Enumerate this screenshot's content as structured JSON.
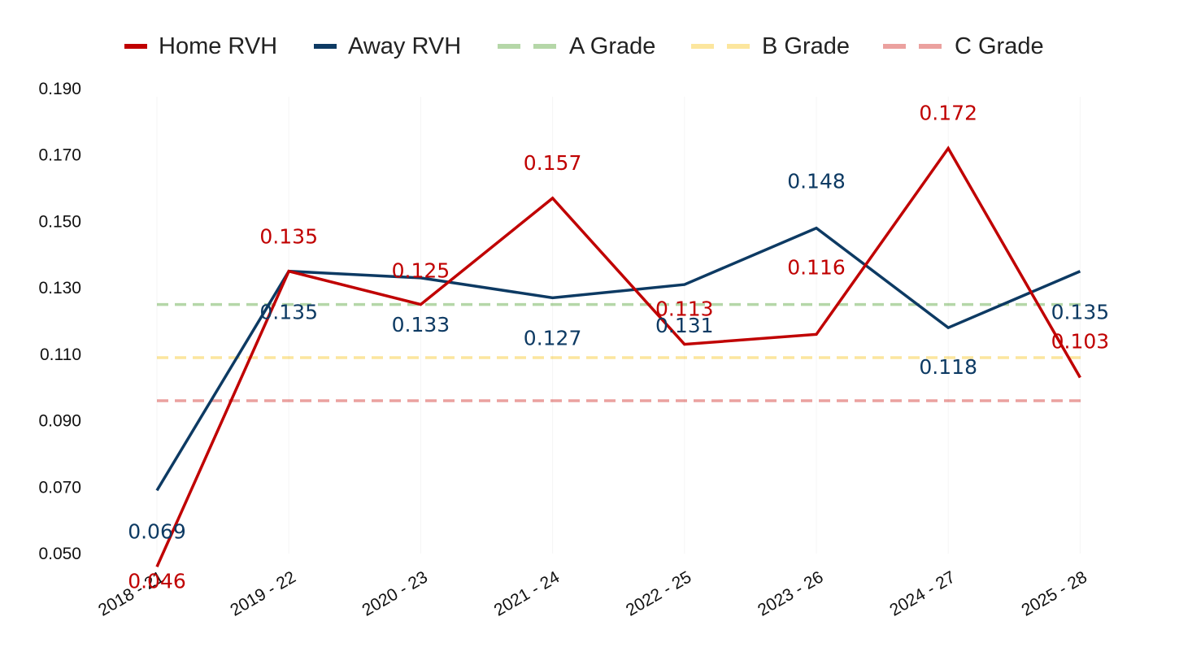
{
  "chart_data": {
    "type": "line",
    "title": "",
    "xlabel": "",
    "ylabel": "",
    "categories": [
      "2018 - 21",
      "2019 - 22",
      "2020 - 23",
      "2021 - 24",
      "2022 - 25",
      "2023 - 26",
      "2024 - 27",
      "2025 - 28"
    ],
    "ylim": [
      0.05,
      0.19
    ],
    "yticks": [
      "0.190",
      "0.170",
      "0.150",
      "0.130",
      "0.110",
      "0.090",
      "0.070",
      "0.050"
    ],
    "ytick_values": [
      0.19,
      0.17,
      0.15,
      0.13,
      0.11,
      0.09,
      0.07,
      0.05
    ],
    "grid": false,
    "legend_position": "top",
    "series": [
      {
        "name": "Home RVH",
        "color": "#c00000",
        "values": [
          0.046,
          0.135,
          0.125,
          0.157,
          0.113,
          0.116,
          0.172,
          0.103
        ],
        "labels": [
          "0.046",
          "0.135",
          "0.125",
          "0.157",
          "0.113",
          "0.116",
          "0.172",
          "0.103"
        ]
      },
      {
        "name": "Away RVH",
        "color": "#0d3a63",
        "values": [
          0.069,
          0.135,
          0.133,
          0.127,
          0.131,
          0.148,
          0.118,
          0.135
        ],
        "labels": [
          "0.069",
          "0.135",
          "0.133",
          "0.127",
          "0.131",
          "0.148",
          "0.118",
          "0.135"
        ]
      }
    ],
    "thresholds": [
      {
        "name": "A Grade",
        "value": 0.125,
        "color": "#b5d7a8"
      },
      {
        "name": "B Grade",
        "value": 0.109,
        "color": "#fce69e"
      },
      {
        "name": "C Grade",
        "value": 0.096,
        "color": "#eba19f"
      }
    ]
  }
}
